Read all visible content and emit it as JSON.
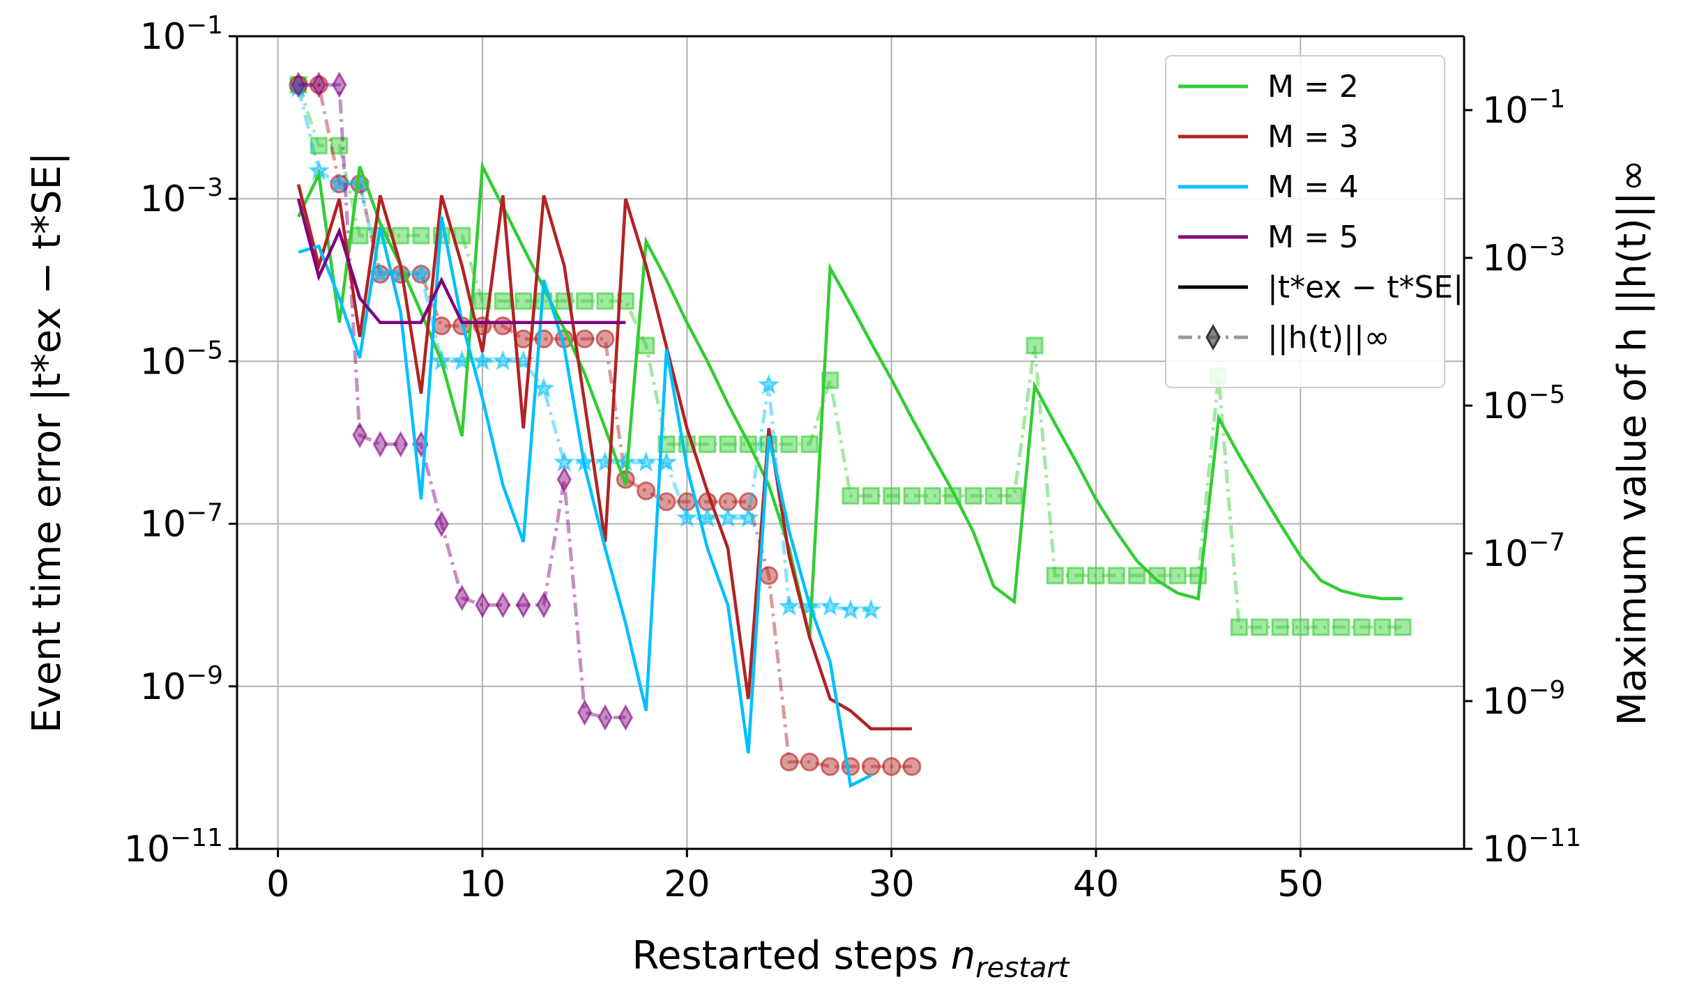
{
  "chart_data": {
    "type": "line",
    "xlabel_text": "Restarted steps ",
    "xlabel_math": "n",
    "xlabel_sub": "restart",
    "ylabel_left": "Event time error |t*ex − t*SE|",
    "ylabel_right": "Maximum value of h ||h(t)||∞",
    "xlim": [
      -2,
      58
    ],
    "ylim_left": [
      1e-11,
      0.1
    ],
    "ylim_right": [
      1e-11,
      1.0
    ],
    "log_y": true,
    "grid": true,
    "legend_position": "top-right",
    "x_ticks": [
      0,
      10,
      20,
      30,
      40,
      50
    ],
    "x_tick_labels": [
      "0",
      "10",
      "20",
      "30",
      "40",
      "50"
    ],
    "y_left_ticks": [
      {
        "value": 0.1,
        "base": "10",
        "exp": "−1"
      },
      {
        "value": 0.001,
        "base": "10",
        "exp": "−3"
      },
      {
        "value": 1e-05,
        "base": "10",
        "exp": "−5"
      },
      {
        "value": 1e-07,
        "base": "10",
        "exp": "−7"
      },
      {
        "value": 1e-09,
        "base": "10",
        "exp": "−9"
      },
      {
        "value": 1e-11,
        "base": "10",
        "exp": "−11"
      }
    ],
    "y_right_ticks": [
      {
        "value": 0.1,
        "base": "10",
        "exp": "−1"
      },
      {
        "value": 0.001,
        "base": "10",
        "exp": "−3"
      },
      {
        "value": 1e-05,
        "base": "10",
        "exp": "−5"
      },
      {
        "value": 1e-07,
        "base": "10",
        "exp": "−7"
      },
      {
        "value": 1e-09,
        "base": "10",
        "exp": "−9"
      },
      {
        "value": 1e-11,
        "base": "10",
        "exp": "−11"
      }
    ],
    "legend": [
      {
        "label": "M = 2",
        "color": "#32cd32",
        "kind": "line"
      },
      {
        "label": "M = 3",
        "color": "#b22222",
        "kind": "line"
      },
      {
        "label": "M = 4",
        "color": "#00bfff",
        "kind": "line"
      },
      {
        "label": "M = 5",
        "color": "#800080",
        "kind": "line"
      },
      {
        "label": "|t*ex − t*SE|",
        "color": "#000000",
        "kind": "line"
      },
      {
        "label": "||h(t)||∞",
        "color": "#808080",
        "kind": "marker"
      }
    ],
    "series": [
      {
        "name": "M = 2",
        "color": "#32cd32",
        "axis": "left",
        "style": "solid",
        "x": [
          1,
          2,
          3,
          4,
          5,
          6,
          7,
          8,
          9,
          10,
          11,
          12,
          13,
          14,
          15,
          16,
          17,
          18,
          19,
          20,
          21,
          22,
          23,
          24,
          25,
          26,
          27,
          28,
          29,
          30,
          31,
          32,
          33,
          34,
          35,
          36,
          37,
          38,
          39,
          40,
          41,
          42,
          43,
          44,
          45,
          46,
          47,
          48,
          49,
          50,
          51,
          52,
          53,
          54,
          55
        ],
        "y": [
          0.0006,
          0.002,
          3e-05,
          0.0025,
          0.0005,
          0.00015,
          4e-05,
          1e-05,
          1.2e-06,
          0.0025,
          0.0008,
          0.00025,
          8e-05,
          2.5e-05,
          7e-06,
          1.5e-06,
          3e-07,
          0.0003,
          0.0001,
          3e-05,
          1e-05,
          3e-06,
          1e-06,
          3e-07,
          5e-08,
          4e-09,
          0.00014,
          5e-05,
          1.7e-05,
          6e-06,
          2e-06,
          7e-07,
          2.5e-07,
          8e-08,
          1.7e-08,
          1.1e-08,
          5e-06,
          1.7e-06,
          6e-07,
          2e-07,
          8e-08,
          3.5e-08,
          2e-08,
          1.4e-08,
          1.2e-08,
          2e-06,
          7e-07,
          2.6e-07,
          1e-07,
          4e-08,
          2e-08,
          1.5e-08,
          1.3e-08,
          1.2e-08,
          1.2e-08
        ]
      },
      {
        "name": "M = 3",
        "color": "#b22222",
        "axis": "left",
        "style": "solid",
        "x": [
          1,
          2,
          3,
          4,
          5,
          6,
          7,
          8,
          9,
          10,
          11,
          12,
          13,
          14,
          15,
          16,
          17,
          18,
          19,
          20,
          21,
          22,
          23,
          24,
          25,
          26,
          27,
          28,
          29,
          30,
          31
        ],
        "y": [
          0.0015,
          0.00015,
          0.001,
          2e-05,
          0.0011,
          0.00015,
          4e-06,
          0.0011,
          0.00015,
          1.3e-05,
          0.0011,
          1.5e-06,
          0.0011,
          0.00015,
          3e-06,
          6e-08,
          0.001,
          0.00015,
          1.5e-05,
          1.5e-06,
          2.5e-07,
          5e-08,
          7e-10,
          1.5e-06,
          4e-08,
          4e-09,
          7e-10,
          5e-10,
          3e-10,
          3e-10,
          3e-10
        ]
      },
      {
        "name": "M = 4",
        "color": "#00bfff",
        "axis": "left",
        "style": "solid",
        "x": [
          1,
          2,
          3,
          4,
          5,
          6,
          7,
          8,
          9,
          10,
          11,
          12,
          13,
          14,
          15,
          16,
          17,
          18,
          19,
          20,
          21,
          22,
          23,
          24,
          25,
          26,
          27,
          28,
          29
        ],
        "y": [
          0.00022,
          0.00026,
          6e-05,
          1.1e-05,
          0.00045,
          4e-05,
          2e-07,
          0.0006,
          3e-05,
          3.5e-06,
          3e-07,
          6e-08,
          0.0001,
          1.5e-05,
          5e-07,
          5e-08,
          6e-09,
          5e-10,
          1.4e-05,
          5e-07,
          5e-08,
          1e-08,
          1.5e-10,
          1.2e-06,
          8e-08,
          1e-08,
          2e-09,
          6e-11,
          8e-11
        ]
      },
      {
        "name": "M = 5",
        "color": "#800080",
        "axis": "left",
        "style": "solid",
        "x": [
          1,
          2,
          3,
          4,
          5,
          6,
          7,
          8,
          9,
          10,
          11,
          12,
          13,
          14,
          15,
          16,
          17
        ],
        "y": [
          0.001,
          0.00011,
          0.0004,
          6e-05,
          3e-05,
          3e-05,
          3e-05,
          0.0001,
          3e-05,
          3e-05,
          3e-05,
          3e-05,
          3e-05,
          3e-05,
          3e-05,
          3e-05,
          3e-05
        ]
      },
      {
        "name": "M = 2",
        "color": "#32cd32",
        "axis": "right",
        "style": "dashdot",
        "marker": "square",
        "x": [
          1,
          2,
          3,
          4,
          5,
          6,
          7,
          8,
          9,
          10,
          11,
          12,
          13,
          14,
          15,
          16,
          17,
          18,
          19,
          20,
          21,
          22,
          23,
          24,
          25,
          26,
          27,
          28,
          29,
          30,
          31,
          32,
          33,
          34,
          35,
          36,
          37,
          38,
          39,
          40,
          41,
          42,
          43,
          44,
          45,
          46,
          47,
          48,
          49,
          50,
          51,
          52,
          53,
          54,
          55
        ],
        "y": [
          0.22,
          0.033,
          0.033,
          0.002,
          0.002,
          0.002,
          0.002,
          0.002,
          0.002,
          0.00026,
          0.00026,
          0.00026,
          0.00026,
          0.00026,
          0.00026,
          0.00026,
          0.00026,
          6.5e-05,
          3e-06,
          3e-06,
          3e-06,
          3e-06,
          3e-06,
          3e-06,
          3e-06,
          3e-06,
          2.2e-05,
          6e-07,
          6e-07,
          6e-07,
          6e-07,
          6e-07,
          6e-07,
          6e-07,
          6e-07,
          6e-07,
          6.5e-05,
          5e-08,
          5e-08,
          5e-08,
          5e-08,
          5e-08,
          5e-08,
          5e-08,
          5e-08,
          2.5e-05,
          1e-08,
          1e-08,
          1e-08,
          1e-08,
          1e-08,
          1e-08,
          1e-08,
          1e-08,
          1e-08
        ]
      },
      {
        "name": "M = 3",
        "color": "#b22222",
        "axis": "right",
        "style": "dashdot",
        "marker": "circle",
        "x": [
          1,
          2,
          3,
          4,
          5,
          6,
          7,
          8,
          9,
          10,
          11,
          12,
          13,
          14,
          15,
          16,
          17,
          18,
          19,
          20,
          21,
          22,
          23,
          24,
          25,
          26,
          27,
          28,
          29,
          30,
          31
        ],
        "y": [
          0.22,
          0.22,
          0.01,
          0.01,
          0.0006,
          0.0006,
          0.0006,
          0.00012,
          0.00012,
          0.00012,
          0.00012,
          8e-05,
          8e-05,
          8e-05,
          8e-05,
          8e-05,
          1e-06,
          7e-07,
          5e-07,
          5e-07,
          5e-07,
          5e-07,
          5e-07,
          5e-08,
          1.5e-10,
          1.5e-10,
          1.3e-10,
          1.3e-10,
          1.3e-10,
          1.3e-10,
          1.3e-10
        ]
      },
      {
        "name": "M = 4",
        "color": "#00bfff",
        "axis": "right",
        "style": "dashdot",
        "marker": "star",
        "x": [
          1,
          2,
          3,
          4,
          5,
          6,
          7,
          8,
          9,
          10,
          11,
          12,
          13,
          14,
          15,
          16,
          17,
          18,
          19,
          20,
          21,
          22,
          23,
          24,
          25,
          26,
          27,
          28,
          29
        ],
        "y": [
          0.2,
          0.015,
          0.01,
          0.01,
          0.0006,
          0.0006,
          0.0006,
          4e-05,
          4e-05,
          4e-05,
          4e-05,
          4e-05,
          1.7e-05,
          1.7e-06,
          1.7e-06,
          1.7e-06,
          1.7e-06,
          1.7e-06,
          1.7e-06,
          3e-07,
          3e-07,
          3e-07,
          3e-07,
          1.9e-05,
          1.9e-08,
          1.9e-08,
          1.9e-08,
          1.7e-08,
          1.7e-08
        ]
      },
      {
        "name": "M = 5",
        "color": "#800080",
        "axis": "right",
        "style": "dashdot",
        "marker": "diamond",
        "x": [
          1,
          2,
          3,
          4,
          5,
          6,
          7,
          8,
          9,
          10,
          11,
          12,
          13,
          14,
          15,
          16,
          17
        ],
        "y": [
          0.22,
          0.22,
          0.22,
          4e-06,
          3e-06,
          3e-06,
          3e-06,
          2.5e-07,
          2.5e-08,
          2e-08,
          2e-08,
          2e-08,
          2e-08,
          1e-06,
          7e-10,
          6e-10,
          6e-10
        ]
      }
    ]
  }
}
